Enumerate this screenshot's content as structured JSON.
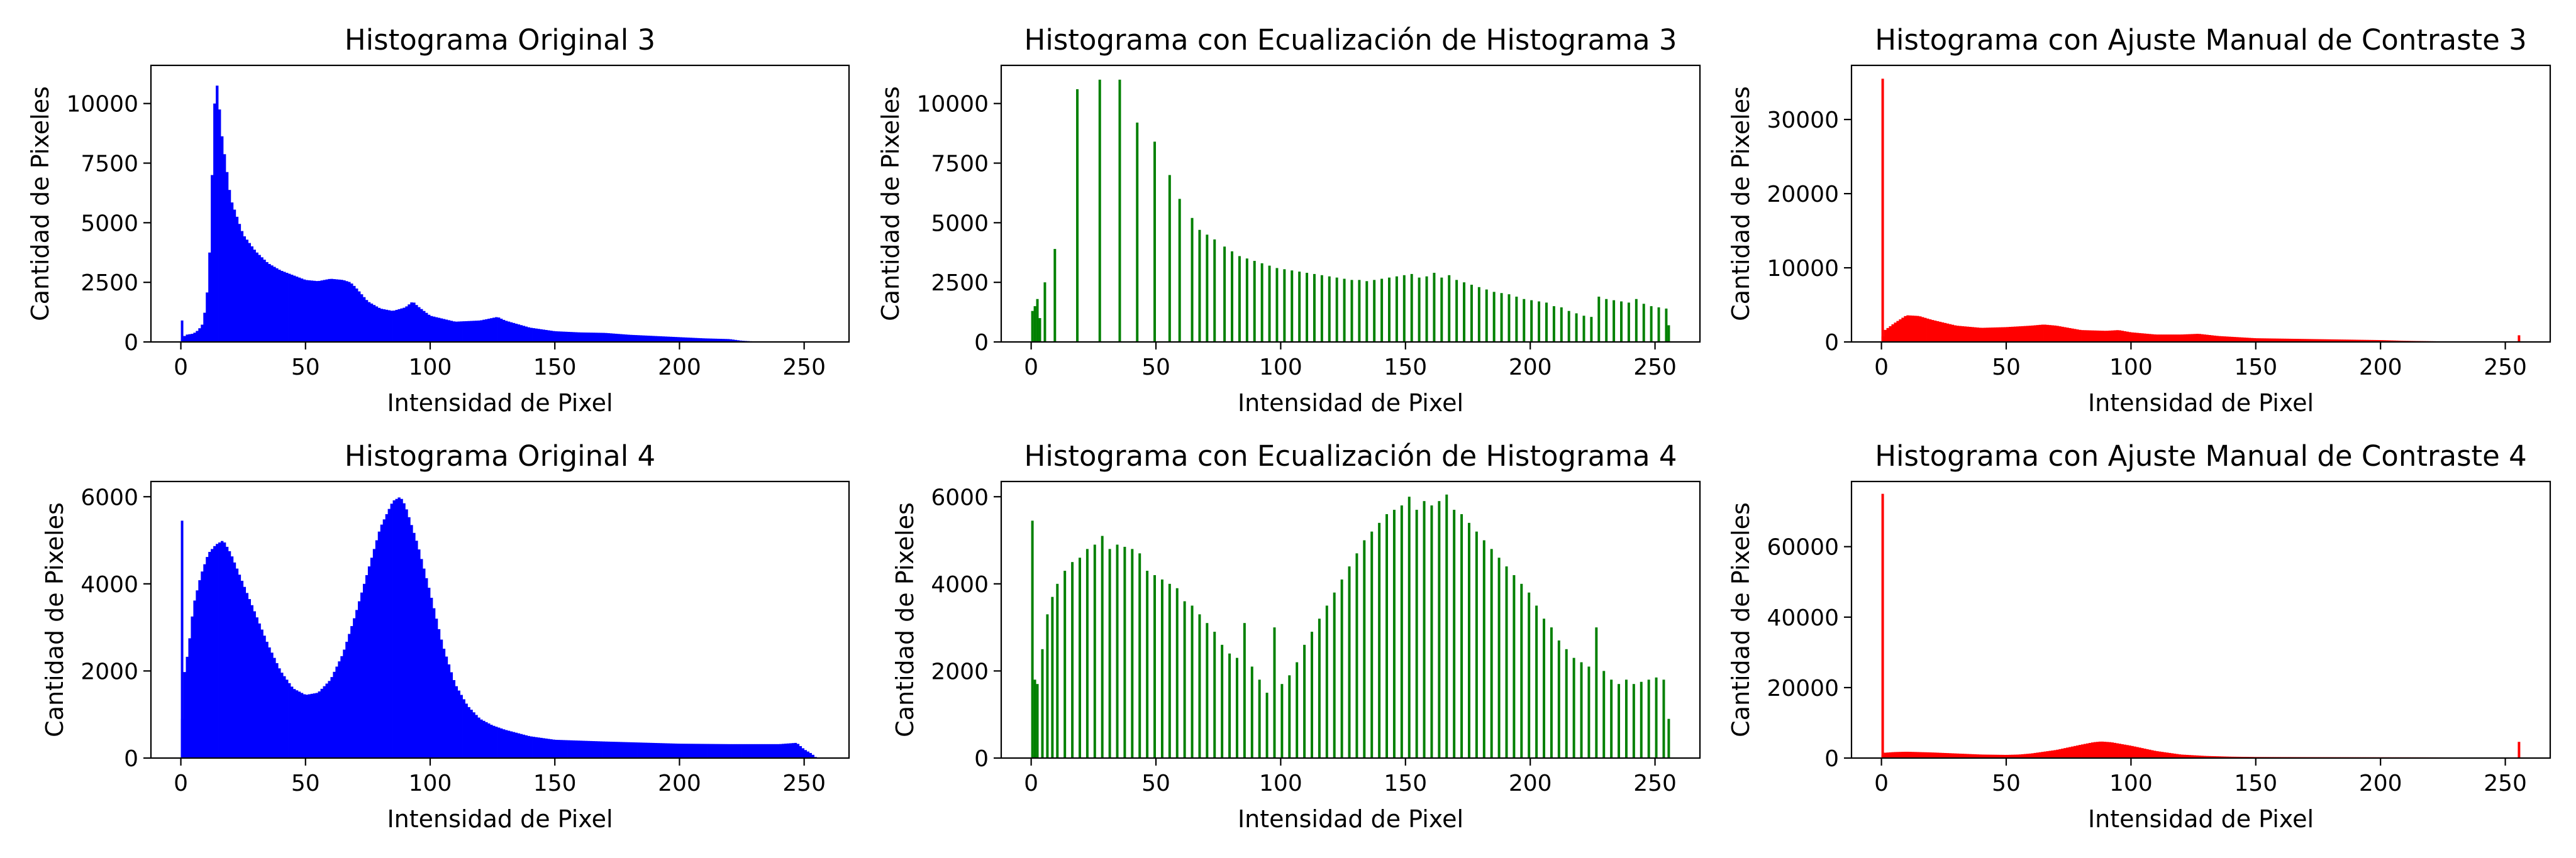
{
  "figure": {
    "background": "#ffffff"
  },
  "chart_data": [
    {
      "id": "orig3",
      "type": "bar",
      "title": "Histograma Original 3",
      "xlabel": "Intensidad de Pixel",
      "ylabel": "Cantidad de Pixeles",
      "color": "#0000ff",
      "xlim": [
        -12,
        268
      ],
      "ylim": [
        0,
        11600
      ],
      "xticks": [
        0,
        50,
        100,
        150,
        200,
        250
      ],
      "yticks": [
        0,
        2500,
        5000,
        7500,
        10000
      ],
      "mode": "dense",
      "points": [
        [
          0,
          0
        ],
        [
          1,
          200
        ],
        [
          2,
          300
        ],
        [
          5,
          350
        ],
        [
          7,
          500
        ],
        [
          9,
          800
        ],
        [
          11,
          2500
        ],
        [
          12,
          5000
        ],
        [
          13,
          9000
        ],
        [
          14,
          11000
        ],
        [
          15,
          10500
        ],
        [
          16,
          9000
        ],
        [
          18,
          7500
        ],
        [
          20,
          6000
        ],
        [
          25,
          4500
        ],
        [
          30,
          3800
        ],
        [
          35,
          3300
        ],
        [
          40,
          3000
        ],
        [
          45,
          2800
        ],
        [
          50,
          2600
        ],
        [
          55,
          2550
        ],
        [
          60,
          2650
        ],
        [
          65,
          2600
        ],
        [
          68,
          2500
        ],
        [
          70,
          2300
        ],
        [
          75,
          1700
        ],
        [
          80,
          1400
        ],
        [
          85,
          1300
        ],
        [
          90,
          1450
        ],
        [
          93,
          1700
        ],
        [
          95,
          1500
        ],
        [
          100,
          1100
        ],
        [
          110,
          850
        ],
        [
          120,
          900
        ],
        [
          127,
          1050
        ],
        [
          130,
          900
        ],
        [
          140,
          600
        ],
        [
          150,
          450
        ],
        [
          160,
          400
        ],
        [
          170,
          380
        ],
        [
          180,
          300
        ],
        [
          190,
          250
        ],
        [
          200,
          200
        ],
        [
          210,
          150
        ],
        [
          220,
          120
        ],
        [
          225,
          50
        ],
        [
          230,
          20
        ],
        [
          235,
          10
        ],
        [
          240,
          0
        ],
        [
          255,
          0
        ]
      ],
      "spikes": [
        [
          0,
          900
        ]
      ]
    },
    {
      "id": "eq3",
      "type": "bar",
      "title": "Histograma con Ecualización de Histograma 3",
      "xlabel": "Intensidad de Pixel",
      "ylabel": "Cantidad de Pixeles",
      "color": "#008000",
      "xlim": [
        -12,
        268
      ],
      "ylim": [
        0,
        11600
      ],
      "xticks": [
        0,
        50,
        100,
        150,
        200,
        250
      ],
      "yticks": [
        0,
        2500,
        5000,
        7500,
        10000
      ],
      "mode": "sparse",
      "spikes": [
        [
          0,
          1300
        ],
        [
          1,
          1500
        ],
        [
          2,
          1800
        ],
        [
          3,
          1000
        ],
        [
          5,
          2500
        ],
        [
          9,
          3900
        ],
        [
          18,
          10600
        ],
        [
          27,
          11000
        ],
        [
          35,
          11000
        ],
        [
          42,
          9200
        ],
        [
          49,
          8400
        ],
        [
          55,
          7000
        ],
        [
          59,
          6000
        ],
        [
          64,
          5200
        ],
        [
          67,
          4700
        ],
        [
          70,
          4500
        ],
        [
          73,
          4300
        ],
        [
          77,
          4000
        ],
        [
          80,
          3800
        ],
        [
          83,
          3600
        ],
        [
          86,
          3500
        ],
        [
          89,
          3400
        ],
        [
          92,
          3300
        ],
        [
          95,
          3200
        ],
        [
          98,
          3100
        ],
        [
          101,
          3050
        ],
        [
          104,
          3000
        ],
        [
          107,
          2950
        ],
        [
          110,
          2900
        ],
        [
          113,
          2850
        ],
        [
          116,
          2800
        ],
        [
          119,
          2750
        ],
        [
          122,
          2700
        ],
        [
          125,
          2650
        ],
        [
          128,
          2600
        ],
        [
          131,
          2600
        ],
        [
          134,
          2550
        ],
        [
          137,
          2600
        ],
        [
          140,
          2650
        ],
        [
          143,
          2700
        ],
        [
          146,
          2750
        ],
        [
          149,
          2800
        ],
        [
          152,
          2850
        ],
        [
          155,
          2700
        ],
        [
          158,
          2750
        ],
        [
          161,
          2900
        ],
        [
          164,
          2700
        ],
        [
          167,
          2800
        ],
        [
          170,
          2600
        ],
        [
          173,
          2500
        ],
        [
          176,
          2400
        ],
        [
          179,
          2300
        ],
        [
          182,
          2200
        ],
        [
          185,
          2100
        ],
        [
          188,
          2050
        ],
        [
          191,
          2000
        ],
        [
          194,
          1900
        ],
        [
          197,
          1800
        ],
        [
          200,
          1750
        ],
        [
          203,
          1700
        ],
        [
          206,
          1650
        ],
        [
          209,
          1500
        ],
        [
          212,
          1450
        ],
        [
          215,
          1300
        ],
        [
          218,
          1200
        ],
        [
          221,
          1100
        ],
        [
          224,
          1050
        ],
        [
          227,
          1900
        ],
        [
          230,
          1800
        ],
        [
          233,
          1750
        ],
        [
          236,
          1700
        ],
        [
          239,
          1650
        ],
        [
          242,
          1800
        ],
        [
          245,
          1600
        ],
        [
          248,
          1500
        ],
        [
          251,
          1450
        ],
        [
          254,
          1400
        ],
        [
          255,
          700
        ]
      ]
    },
    {
      "id": "man3",
      "type": "bar",
      "title": "Histograma con Ajuste Manual de Contraste 3",
      "xlabel": "Intensidad de Pixel",
      "ylabel": "Cantidad de Pixeles",
      "color": "#ff0000",
      "xlim": [
        -12,
        268
      ],
      "ylim": [
        0,
        37300
      ],
      "xticks": [
        0,
        50,
        100,
        150,
        200,
        250
      ],
      "yticks": [
        0,
        10000,
        20000,
        30000
      ],
      "mode": "dense",
      "points": [
        [
          0,
          0
        ],
        [
          1,
          1500
        ],
        [
          5,
          2500
        ],
        [
          10,
          3600
        ],
        [
          15,
          3500
        ],
        [
          20,
          3000
        ],
        [
          30,
          2200
        ],
        [
          40,
          1900
        ],
        [
          50,
          2000
        ],
        [
          60,
          2200
        ],
        [
          65,
          2350
        ],
        [
          70,
          2200
        ],
        [
          80,
          1600
        ],
        [
          90,
          1500
        ],
        [
          95,
          1600
        ],
        [
          100,
          1300
        ],
        [
          110,
          1000
        ],
        [
          120,
          1000
        ],
        [
          127,
          1100
        ],
        [
          135,
          800
        ],
        [
          150,
          500
        ],
        [
          170,
          400
        ],
        [
          190,
          300
        ],
        [
          200,
          250
        ],
        [
          210,
          150
        ],
        [
          220,
          100
        ],
        [
          230,
          50
        ],
        [
          240,
          20
        ],
        [
          250,
          0
        ],
        [
          255,
          0
        ]
      ],
      "spikes": [
        [
          0,
          35500
        ],
        [
          255,
          900
        ]
      ]
    },
    {
      "id": "orig4",
      "type": "bar",
      "title": "Histograma Original 4",
      "xlabel": "Intensidad de Pixel",
      "ylabel": "Cantidad de Pixeles",
      "color": "#0000ff",
      "xlim": [
        -12,
        268
      ],
      "ylim": [
        0,
        6350
      ],
      "xticks": [
        0,
        50,
        100,
        150,
        200,
        250
      ],
      "yticks": [
        0,
        2000,
        4000,
        6000
      ],
      "mode": "dense",
      "points": [
        [
          0,
          0
        ],
        [
          1,
          1800
        ],
        [
          3,
          2500
        ],
        [
          5,
          3500
        ],
        [
          8,
          4200
        ],
        [
          11,
          4700
        ],
        [
          14,
          4900
        ],
        [
          17,
          5000
        ],
        [
          20,
          4700
        ],
        [
          25,
          4000
        ],
        [
          30,
          3300
        ],
        [
          35,
          2600
        ],
        [
          40,
          2000
        ],
        [
          45,
          1600
        ],
        [
          50,
          1450
        ],
        [
          55,
          1500
        ],
        [
          60,
          1800
        ],
        [
          65,
          2400
        ],
        [
          70,
          3300
        ],
        [
          75,
          4300
        ],
        [
          80,
          5300
        ],
        [
          85,
          5900
        ],
        [
          88,
          6000
        ],
        [
          90,
          5800
        ],
        [
          95,
          4900
        ],
        [
          100,
          3800
        ],
        [
          105,
          2600
        ],
        [
          110,
          1700
        ],
        [
          115,
          1200
        ],
        [
          120,
          900
        ],
        [
          125,
          750
        ],
        [
          130,
          650
        ],
        [
          140,
          500
        ],
        [
          150,
          420
        ],
        [
          170,
          380
        ],
        [
          200,
          330
        ],
        [
          220,
          320
        ],
        [
          240,
          320
        ],
        [
          247,
          350
        ],
        [
          250,
          200
        ],
        [
          253,
          100
        ],
        [
          255,
          0
        ]
      ],
      "spikes": [
        [
          0,
          5450
        ]
      ]
    },
    {
      "id": "eq4",
      "type": "bar",
      "title": "Histograma con Ecualización de Histograma 4",
      "xlabel": "Intensidad de Pixel",
      "ylabel": "Cantidad de Pixeles",
      "color": "#008000",
      "xlim": [
        -12,
        268
      ],
      "ylim": [
        0,
        6350
      ],
      "xticks": [
        0,
        50,
        100,
        150,
        200,
        250
      ],
      "yticks": [
        0,
        2000,
        4000,
        6000
      ],
      "mode": "sparse",
      "spikes": [
        [
          0,
          5450
        ],
        [
          1,
          1800
        ],
        [
          2,
          1700
        ],
        [
          4,
          2500
        ],
        [
          6,
          3300
        ],
        [
          8,
          3700
        ],
        [
          10,
          4000
        ],
        [
          13,
          4300
        ],
        [
          16,
          4500
        ],
        [
          19,
          4600
        ],
        [
          22,
          4800
        ],
        [
          25,
          4900
        ],
        [
          28,
          5100
        ],
        [
          31,
          4800
        ],
        [
          34,
          4900
        ],
        [
          37,
          4850
        ],
        [
          40,
          4800
        ],
        [
          43,
          4700
        ],
        [
          46,
          4300
        ],
        [
          49,
          4200
        ],
        [
          52,
          4100
        ],
        [
          55,
          4000
        ],
        [
          58,
          3900
        ],
        [
          61,
          3600
        ],
        [
          64,
          3500
        ],
        [
          67,
          3300
        ],
        [
          70,
          3100
        ],
        [
          73,
          2900
        ],
        [
          76,
          2600
        ],
        [
          79,
          2400
        ],
        [
          82,
          2300
        ],
        [
          85,
          3100
        ],
        [
          88,
          2100
        ],
        [
          91,
          1800
        ],
        [
          94,
          1500
        ],
        [
          97,
          3000
        ],
        [
          100,
          1700
        ],
        [
          103,
          1900
        ],
        [
          106,
          2200
        ],
        [
          109,
          2600
        ],
        [
          112,
          2900
        ],
        [
          115,
          3200
        ],
        [
          118,
          3500
        ],
        [
          121,
          3800
        ],
        [
          124,
          4100
        ],
        [
          127,
          4400
        ],
        [
          130,
          4700
        ],
        [
          133,
          5000
        ],
        [
          136,
          5200
        ],
        [
          139,
          5400
        ],
        [
          142,
          5600
        ],
        [
          145,
          5700
        ],
        [
          148,
          5800
        ],
        [
          151,
          6000
        ],
        [
          154,
          5700
        ],
        [
          157,
          5900
        ],
        [
          160,
          5800
        ],
        [
          163,
          5900
        ],
        [
          166,
          6050
        ],
        [
          169,
          5700
        ],
        [
          172,
          5600
        ],
        [
          175,
          5400
        ],
        [
          178,
          5200
        ],
        [
          181,
          5000
        ],
        [
          184,
          4800
        ],
        [
          187,
          4600
        ],
        [
          190,
          4400
        ],
        [
          193,
          4200
        ],
        [
          196,
          4000
        ],
        [
          199,
          3800
        ],
        [
          202,
          3500
        ],
        [
          205,
          3200
        ],
        [
          208,
          3000
        ],
        [
          211,
          2700
        ],
        [
          214,
          2500
        ],
        [
          217,
          2300
        ],
        [
          220,
          2200
        ],
        [
          223,
          2100
        ],
        [
          226,
          3000
        ],
        [
          229,
          2000
        ],
        [
          232,
          1800
        ],
        [
          235,
          1700
        ],
        [
          238,
          1800
        ],
        [
          241,
          1700
        ],
        [
          244,
          1750
        ],
        [
          247,
          1800
        ],
        [
          250,
          1850
        ],
        [
          253,
          1800
        ],
        [
          255,
          900
        ]
      ]
    },
    {
      "id": "man4",
      "type": "bar",
      "title": "Histograma con Ajuste Manual de Contraste 4",
      "xlabel": "Intensidad de Pixel",
      "ylabel": "Cantidad de Pixeles",
      "color": "#ff0000",
      "xlim": [
        -12,
        268
      ],
      "ylim": [
        0,
        78500
      ],
      "xticks": [
        0,
        50,
        100,
        150,
        200,
        250
      ],
      "yticks": [
        0,
        20000,
        40000,
        60000
      ],
      "mode": "dense",
      "points": [
        [
          0,
          0
        ],
        [
          1,
          1500
        ],
        [
          5,
          1700
        ],
        [
          10,
          1800
        ],
        [
          20,
          1600
        ],
        [
          30,
          1300
        ],
        [
          40,
          1000
        ],
        [
          50,
          900
        ],
        [
          55,
          1000
        ],
        [
          60,
          1300
        ],
        [
          70,
          2300
        ],
        [
          80,
          3800
        ],
        [
          85,
          4500
        ],
        [
          88,
          4700
        ],
        [
          92,
          4500
        ],
        [
          100,
          3500
        ],
        [
          110,
          2000
        ],
        [
          120,
          1000
        ],
        [
          130,
          600
        ],
        [
          140,
          400
        ],
        [
          150,
          300
        ],
        [
          180,
          250
        ],
        [
          220,
          200
        ],
        [
          240,
          150
        ],
        [
          250,
          100
        ],
        [
          255,
          0
        ]
      ],
      "spikes": [
        [
          0,
          75000
        ],
        [
          255,
          4600
        ]
      ]
    }
  ]
}
